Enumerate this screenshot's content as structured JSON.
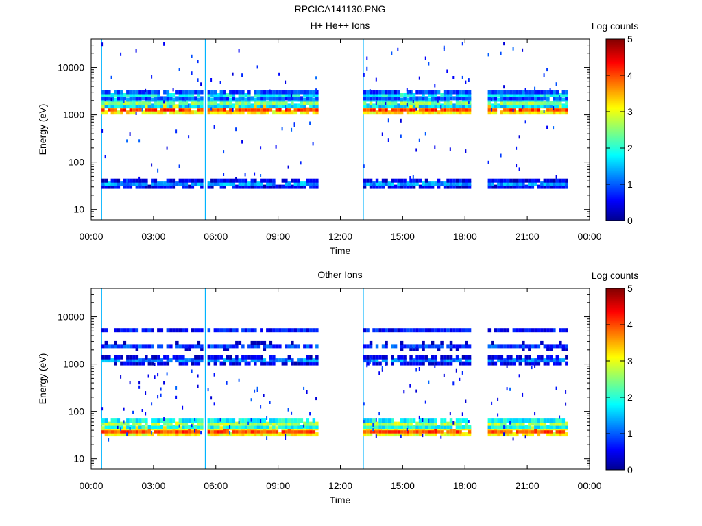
{
  "file_title": "RPCICA141130.PNG",
  "colorbar_label": "Log counts",
  "colorbar_ticks": [
    "0",
    "1",
    "2",
    "3",
    "4",
    "5"
  ],
  "colors": {
    "background": "#ffffff",
    "spectral_low": "#00008f",
    "spectral_high": "#800000",
    "interval_marker": "#00b4ff"
  },
  "chart_data": [
    {
      "type": "heatmap",
      "title": "H+ He++ Ions",
      "xlabel": "Time",
      "ylabel": "Energy (eV)",
      "x_ticks": [
        "00:00",
        "03:00",
        "06:00",
        "09:00",
        "12:00",
        "15:00",
        "18:00",
        "21:00",
        "00:00"
      ],
      "x_range_hours": [
        0,
        24
      ],
      "y_scale": "log",
      "y_ticks": [
        "10",
        "100",
        "1000",
        "10000"
      ],
      "y_range_ev": [
        6,
        40000
      ],
      "colorbar": {
        "label": "Log counts",
        "range": [
          0,
          5
        ]
      },
      "data_intervals_hours": [
        [
          0.5,
          5.3
        ],
        [
          5.6,
          10.9
        ],
        [
          13.1,
          18.2
        ],
        [
          19.1,
          22.9
        ]
      ],
      "interval_markers_hours": [
        0.5,
        5.5,
        13.1
      ],
      "bands": [
        {
          "energy_ev": 1300,
          "log_counts": 4.1
        },
        {
          "energy_ev": 1800,
          "log_counts": 2.6
        },
        {
          "energy_ev": 2600,
          "log_counts": 1.9
        },
        {
          "energy_ev": 35,
          "log_counts": 1.4
        }
      ],
      "scatter_energy_ev": [
        40,
        35000
      ]
    },
    {
      "type": "heatmap",
      "title": "Other Ions",
      "xlabel": "Time",
      "ylabel": "Energy (eV)",
      "x_ticks": [
        "00:00",
        "03:00",
        "06:00",
        "09:00",
        "12:00",
        "15:00",
        "18:00",
        "21:00",
        "00:00"
      ],
      "x_range_hours": [
        0,
        24
      ],
      "y_scale": "log",
      "y_ticks": [
        "10",
        "100",
        "1000",
        "10000"
      ],
      "y_range_ev": [
        6,
        40000
      ],
      "colorbar": {
        "label": "Log counts",
        "range": [
          0,
          5
        ]
      },
      "data_intervals_hours": [
        [
          0.5,
          5.3
        ],
        [
          5.6,
          10.9
        ],
        [
          13.1,
          18.2
        ],
        [
          19.1,
          22.9
        ]
      ],
      "interval_markers_hours": [
        0.5,
        5.5,
        13.1
      ],
      "bands": [
        {
          "energy_ev": 38,
          "log_counts": 4.0
        },
        {
          "energy_ev": 55,
          "log_counts": 2.8
        },
        {
          "energy_ev": 1200,
          "log_counts": 1.3
        },
        {
          "energy_ev": 2400,
          "log_counts": 0.9
        },
        {
          "energy_ev": 5200,
          "log_counts": 0.7
        }
      ],
      "scatter_energy_ev": [
        25,
        1500
      ]
    }
  ]
}
